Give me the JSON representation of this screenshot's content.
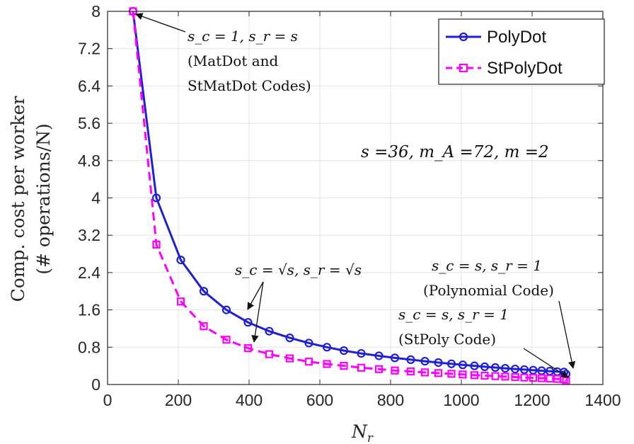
{
  "chart_data": {
    "type": "line",
    "xlabel": "N_r",
    "ylabel_line1": "Comp. cost per worker",
    "ylabel_line2": "(# operations/N)",
    "xlim": [
      0,
      1400
    ],
    "ylim": [
      0,
      8
    ],
    "xticks": [
      0,
      200,
      400,
      600,
      800,
      1000,
      1200,
      1400
    ],
    "yticks": [
      0,
      0.8,
      1.6,
      2.4,
      3.2,
      4,
      4.8,
      5.6,
      6.4,
      7.2,
      8
    ],
    "grid": true,
    "legend_position": "top-right",
    "series": [
      {
        "name": "PolyDot",
        "color": "#1f1fd6",
        "style": "solid",
        "marker": "circle",
        "x": [
          72,
          138,
          207,
          272,
          336,
          397,
          457,
          515,
          569,
          620,
          668,
          717,
          767,
          812,
          857,
          897,
          935,
          972,
          1004,
          1037,
          1066,
          1096,
          1124,
          1152,
          1178,
          1203,
          1227,
          1250,
          1271,
          1290,
          1296
        ],
        "y": [
          8.0,
          4.0,
          2.67,
          2.0,
          1.6,
          1.333,
          1.143,
          1.0,
          0.889,
          0.8,
          0.727,
          0.667,
          0.615,
          0.571,
          0.533,
          0.5,
          0.471,
          0.444,
          0.421,
          0.4,
          0.381,
          0.364,
          0.348,
          0.333,
          0.32,
          0.308,
          0.296,
          0.286,
          0.276,
          0.267,
          0.222
        ]
      },
      {
        "name": "StPolyDot",
        "color": "#ff00ff",
        "style": "dashed",
        "marker": "square",
        "x": [
          72,
          138,
          207,
          272,
          336,
          397,
          457,
          515,
          569,
          620,
          668,
          717,
          767,
          812,
          857,
          897,
          935,
          972,
          1004,
          1037,
          1066,
          1096,
          1124,
          1152,
          1178,
          1203,
          1227,
          1250,
          1271,
          1290,
          1296
        ],
        "y": [
          8.0,
          3.0,
          1.78,
          1.25,
          0.96,
          0.78,
          0.65,
          0.56,
          0.49,
          0.44,
          0.4,
          0.36,
          0.33,
          0.3,
          0.28,
          0.26,
          0.245,
          0.23,
          0.215,
          0.2,
          0.19,
          0.18,
          0.17,
          0.16,
          0.15,
          0.142,
          0.135,
          0.127,
          0.12,
          0.113,
          0.08
        ]
      }
    ],
    "annotations": {
      "top_line1": "s_c = 1, s_r = s",
      "top_line2": "(MatDot and",
      "top_line3": "StMatDot Codes)",
      "params": "s =36, m_A =72, m =2",
      "mid": "s_c = √s, s_r = √s",
      "right1_line1": "s_c = s, s_r = 1",
      "right1_line2": "(Polynomial Code)",
      "right2_line1": "s_c = s, s_r = 1",
      "right2_line2": "(StPoly Code)"
    }
  }
}
